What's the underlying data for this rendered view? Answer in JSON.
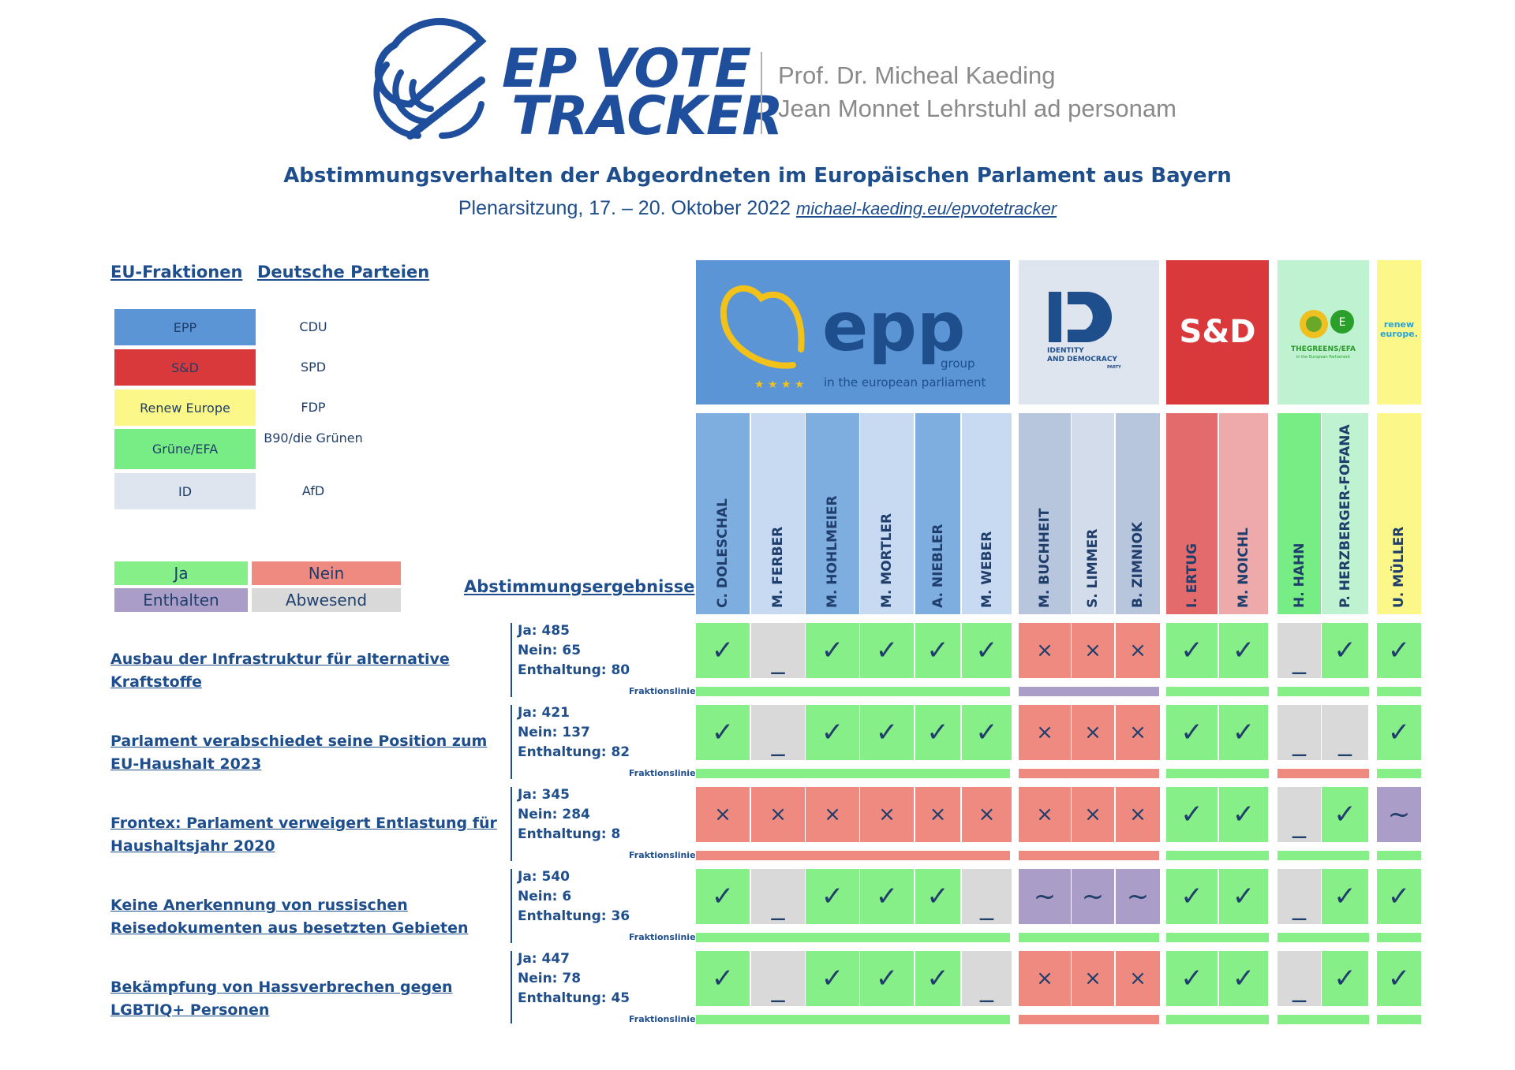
{
  "header": {
    "logo_line1": "EP VOTE",
    "logo_line2": "TRACKER",
    "author": "Prof. Dr. Micheal Kaeding",
    "chair": "Jean Monnet Lehrstuhl ad personam",
    "title": "Abstimmungsverhalten der Abgeordneten im Europäischen Parlament aus Bayern",
    "session": "Plenarsitzung, 17. – 20. Oktober 2022",
    "link": "michael-kaeding.eu/epvotetracker"
  },
  "legend": {
    "fraktionen_heading": "EU-Fraktionen",
    "parteien_heading": "Deutsche Parteien",
    "rows": [
      {
        "fraktion": "EPP",
        "partei": "CDU",
        "color": "#5b95d5"
      },
      {
        "fraktion": "S&D",
        "partei": "SPD",
        "color": "#d9393a"
      },
      {
        "fraktion": "Renew Europe",
        "partei": "FDP",
        "color": "#fbf889"
      },
      {
        "fraktion": "Grüne/EFA",
        "partei": "B90/die Grünen",
        "color": "#78ec85"
      },
      {
        "fraktion": "ID",
        "partei": "AfD",
        "color": "#dfe5ef"
      }
    ],
    "vote_keys": {
      "ja": "Ja",
      "nein": "Nein",
      "enthalten": "Enthalten",
      "abwesend": "Abwesend"
    },
    "results_heading": "Abstimmungsergebnisse"
  },
  "groups": {
    "epp": {
      "word": "epp",
      "small1": "group",
      "small2": "in the european parliament",
      "color": "#5b95d5"
    },
    "id": {
      "line1": "IDENTITY",
      "line2": "AND DEMOCRACY",
      "line3": "PARTY",
      "color": "#dfe5ef"
    },
    "sd": {
      "word": "S&D",
      "color": "#d9393a"
    },
    "greens": {
      "line1": "THEGREENS/EFA",
      "line2": "in the European Parliament",
      "color": "#bff2d0"
    },
    "renew": {
      "line1": "renew",
      "line2": "europe.",
      "color": "#fbf889"
    }
  },
  "meps": [
    {
      "name": "C. DOLESCHAL",
      "color": "#7eaddf"
    },
    {
      "name": "M. FERBER",
      "color": "#c7daf1"
    },
    {
      "name": "M. HOHLMEIER",
      "color": "#7eaddf"
    },
    {
      "name": "M. MORTLER",
      "color": "#c7daf1"
    },
    {
      "name": "A. NIEBLER",
      "color": "#7eaddf"
    },
    {
      "name": "M. WEBER",
      "color": "#c7daf1"
    },
    {
      "name": "M. BUCHHEIT",
      "color": "#b7c6dc"
    },
    {
      "name": "S. LIMMER",
      "color": "#d3dcea"
    },
    {
      "name": "B. ZIMNIOK",
      "color": "#b7c6dc"
    },
    {
      "name": "I. ERTUG",
      "color": "#e46b6c"
    },
    {
      "name": "M. NOICHL",
      "color": "#eeaaaa"
    },
    {
      "name": "H. HAHN",
      "color": "#78ec85"
    },
    {
      "name": "P. HERZBERGER-FOFANA",
      "color": "#bff2d0"
    },
    {
      "name": "U. MÜLLER",
      "color": "#fbf889"
    }
  ],
  "symbols": {
    "ja": "✓",
    "nein": "×",
    "enthalten": "~",
    "abwesend": "_"
  },
  "vote_colors": {
    "ja": "#86ef88",
    "nein": "#ef8a80",
    "enthalten": "#aa9ec8",
    "abwesend": "#d9d9d9"
  },
  "fraktionslinie_label": "Fraktionslinie",
  "votes": [
    {
      "title": "Ausbau der Infrastruktur für alternative Kraftstoffe",
      "ja": "Ja: 485",
      "nein": "Nein: 65",
      "enthaltung": "Enthaltung: 80",
      "cells": [
        "ja",
        "abwesend",
        "ja",
        "ja",
        "ja",
        "ja",
        "nein",
        "nein",
        "nein",
        "ja",
        "ja",
        "abwesend",
        "ja",
        "ja"
      ],
      "lines": [
        "ja",
        "enthalten",
        "ja",
        "ja",
        "ja"
      ]
    },
    {
      "title": "Parlament verabschiedet seine Position zum EU-Haushalt 2023",
      "ja": "Ja: 421",
      "nein": "Nein: 137",
      "enthaltung": "Enthaltung: 82",
      "cells": [
        "ja",
        "abwesend",
        "ja",
        "ja",
        "ja",
        "ja",
        "nein",
        "nein",
        "nein",
        "ja",
        "ja",
        "abwesend",
        "abwesend",
        "ja"
      ],
      "lines": [
        "ja",
        "nein",
        "ja",
        "nein",
        "ja"
      ]
    },
    {
      "title": "Frontex: Parlament verweigert Entlastung für Haushaltsjahr 2020",
      "ja": "Ja: 345",
      "nein": "Nein: 284",
      "enthaltung": "Enthaltung: 8",
      "cells": [
        "nein",
        "nein",
        "nein",
        "nein",
        "nein",
        "nein",
        "nein",
        "nein",
        "nein",
        "ja",
        "ja",
        "abwesend",
        "ja",
        "enthalten"
      ],
      "lines": [
        "nein",
        "nein",
        "ja",
        "ja",
        "ja"
      ]
    },
    {
      "title": "Keine Anerkennung von russischen Reisedokumenten aus besetzten Gebieten",
      "ja": "Ja: 540",
      "nein": "Nein: 6",
      "enthaltung": "Enthaltung: 36",
      "cells": [
        "ja",
        "abwesend",
        "ja",
        "ja",
        "ja",
        "abwesend",
        "enthalten",
        "enthalten",
        "enthalten",
        "ja",
        "ja",
        "abwesend",
        "ja",
        "ja"
      ],
      "lines": [
        "ja",
        "ja",
        "ja",
        "ja",
        "ja"
      ]
    },
    {
      "title": "Bekämpfung von Hassverbrechen gegen LGBTIQ+ Personen",
      "ja": "Ja: 447",
      "nein": "Nein: 78",
      "enthaltung": "Enthaltung: 45",
      "cells": [
        "ja",
        "abwesend",
        "ja",
        "ja",
        "ja",
        "abwesend",
        "nein",
        "nein",
        "nein",
        "ja",
        "ja",
        "abwesend",
        "ja",
        "ja"
      ],
      "lines": [
        "ja",
        "nein",
        "ja",
        "ja",
        "ja"
      ]
    }
  ]
}
